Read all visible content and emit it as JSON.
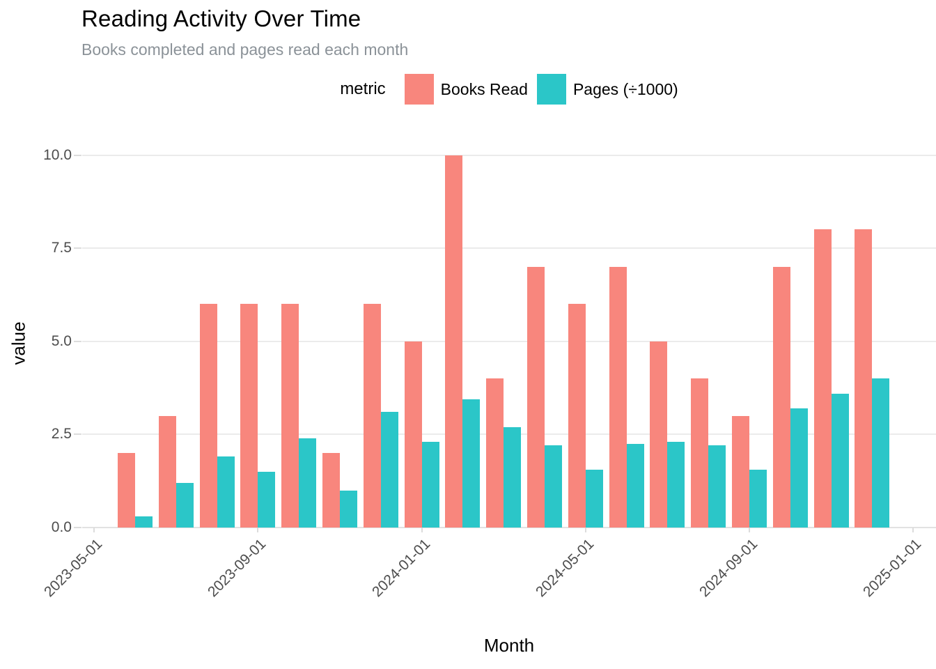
{
  "chart_data": {
    "type": "bar",
    "title": "Reading Activity Over Time",
    "subtitle": "Books completed and pages read each month",
    "xlabel": "Month",
    "ylabel": "value",
    "legend_title": "metric",
    "legend_position": "top-center",
    "grid": "horizontal",
    "ylim": [
      0,
      10
    ],
    "yticks": [
      0,
      2.5,
      5,
      7.5,
      10
    ],
    "ytick_labels": [
      "0.0",
      "2.5",
      "5.0",
      "7.5",
      "10.0"
    ],
    "xtick_labels": [
      "2023-05-01",
      "2023-09-01",
      "2024-01-01",
      "2024-05-01",
      "2024-09-01",
      "2025-01-01"
    ],
    "categories": [
      "2023-06",
      "2023-07",
      "2023-08",
      "2023-09",
      "2023-10",
      "2023-11",
      "2023-12",
      "2024-01",
      "2024-02",
      "2024-03",
      "2024-04",
      "2024-05",
      "2024-06",
      "2024-07",
      "2024-08",
      "2024-09",
      "2024-10",
      "2024-11",
      "2024-12"
    ],
    "series": [
      {
        "name": "Books Read",
        "color": "#F8867D",
        "values": [
          2,
          3,
          6,
          6,
          6,
          2,
          6,
          5,
          10,
          4,
          7,
          6,
          7,
          5,
          4,
          3,
          7,
          8,
          8
        ]
      },
      {
        "name": "Pages (÷1000)",
        "color": "#2BC6C8",
        "values": [
          0.3,
          1.2,
          1.9,
          1.5,
          2.4,
          1.0,
          3.1,
          2.3,
          3.45,
          2.7,
          2.2,
          1.55,
          2.25,
          2.3,
          2.2,
          1.55,
          3.2,
          3.6,
          4.0
        ]
      }
    ]
  }
}
